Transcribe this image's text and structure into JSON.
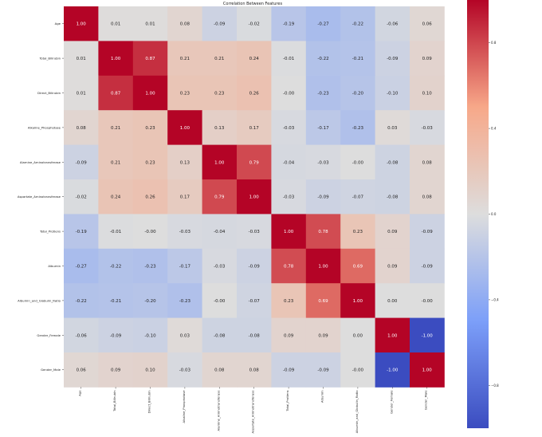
{
  "chart_data": {
    "type": "heatmap",
    "title": "Correlation Between Features",
    "labels": [
      "Age",
      "Total_Bilirubin",
      "Direct_Bilirubin",
      "Alkaline_Phosphotase",
      "Alamine_Aminotransferase",
      "Aspartate_Aminotransferase",
      "Total_Protiens",
      "Albumin",
      "Albumin_and_Globulin_Ratio",
      "Gender_Female",
      "Gender_Male"
    ],
    "values": [
      [
        1.0,
        0.01,
        0.01,
        0.08,
        -0.09,
        -0.02,
        -0.19,
        -0.27,
        -0.22,
        -0.06,
        0.06
      ],
      [
        0.01,
        1.0,
        0.87,
        0.21,
        0.21,
        0.24,
        -0.01,
        -0.22,
        -0.21,
        -0.09,
        0.09
      ],
      [
        0.01,
        0.87,
        1.0,
        0.23,
        0.23,
        0.26,
        -0.0,
        -0.23,
        -0.2,
        -0.1,
        0.1
      ],
      [
        0.08,
        0.21,
        0.23,
        1.0,
        0.13,
        0.17,
        -0.03,
        -0.17,
        -0.23,
        0.03,
        -0.03
      ],
      [
        -0.09,
        0.21,
        0.23,
        0.13,
        1.0,
        0.79,
        -0.04,
        -0.03,
        -0.0,
        -0.08,
        0.08
      ],
      [
        -0.02,
        0.24,
        0.26,
        0.17,
        0.79,
        1.0,
        -0.03,
        -0.09,
        -0.07,
        -0.08,
        0.08
      ],
      [
        -0.19,
        -0.01,
        -0.0,
        -0.03,
        -0.04,
        -0.03,
        1.0,
        0.78,
        0.23,
        0.09,
        -0.09
      ],
      [
        -0.27,
        -0.22,
        -0.23,
        -0.17,
        -0.03,
        -0.09,
        0.78,
        1.0,
        0.69,
        0.09,
        -0.09
      ],
      [
        -0.22,
        -0.21,
        -0.2,
        -0.23,
        -0.0,
        -0.07,
        0.23,
        0.69,
        1.0,
        0.0,
        -0.0
      ],
      [
        -0.06,
        -0.09,
        -0.1,
        0.03,
        -0.08,
        -0.08,
        0.09,
        0.09,
        0.0,
        1.0,
        -1.0
      ],
      [
        0.06,
        0.09,
        0.1,
        -0.03,
        0.08,
        0.08,
        -0.09,
        -0.09,
        -0.0,
        -1.0,
        1.0
      ]
    ],
    "colormap": "coolwarm",
    "vmin": -1.0,
    "vmax": 1.0,
    "colorbar_ticks": [
      0.8,
      0.4,
      0.0,
      -0.4,
      -0.8
    ],
    "colorbar_tick_labels": [
      "0.8",
      "0.4",
      "0.0",
      "−0.4",
      "−0.8"
    ]
  }
}
